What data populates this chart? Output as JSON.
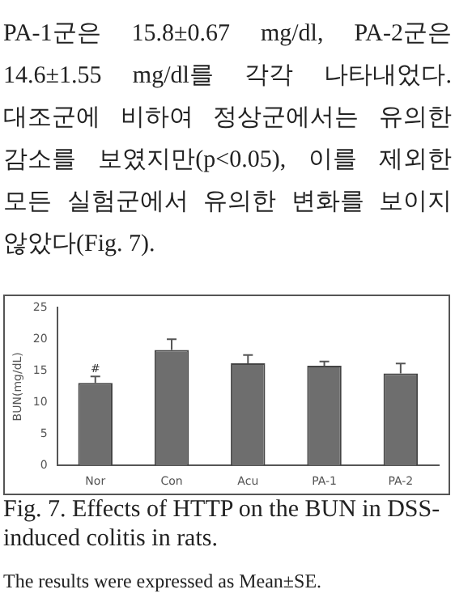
{
  "chart_data": {
    "type": "bar",
    "categories": [
      "Nor",
      "Con",
      "Acu",
      "PA-1",
      "PA-2"
    ],
    "values": [
      13.1,
      18.3,
      16.2,
      15.8,
      14.6
    ],
    "errors": [
      1.0,
      1.7,
      1.3,
      0.67,
      1.55
    ],
    "color": "#6e6e6e",
    "ylabel": "BUN(mg/dL)",
    "ylim": [
      0,
      25
    ],
    "yticks": [
      0,
      5,
      10,
      15,
      20,
      25
    ],
    "grid": false,
    "legend": false,
    "annotations": [
      "PA-1군은 15.8±0.67 mg/dl, PA-2군은 14.6±1.55 mg/dl를 각각 나타내었다. 대조군에 비하여 정상군에서는 유의한 감소를 보였지만(p<0.05), 이를 제외한 모든 실험군에서 유의한 변화를 보이지 않았다(Fig. 7).",
      {
        "text": "#",
        "x": "Nor",
        "y": 14.6
      },
      "Fig. 7. Effects of HTTP on the BUN in DSS-induced colitis in rats.",
      "The results were expressed as Mean±SE."
    ]
  }
}
